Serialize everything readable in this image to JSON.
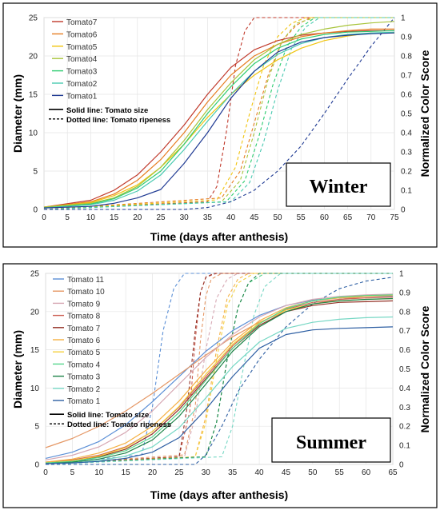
{
  "chart_data": [
    {
      "type": "line",
      "title": "Winter",
      "xlabel": "Time (days after anthesis)",
      "ylabel": "Diameter (mm)",
      "y2label": "Normalized Color Score",
      "xlim": [
        0,
        75
      ],
      "ylim": [
        0,
        25
      ],
      "y2lim": [
        0,
        1
      ],
      "xticks": [
        0,
        5,
        10,
        15,
        20,
        25,
        30,
        35,
        40,
        45,
        50,
        55,
        60,
        65,
        70,
        75
      ],
      "yticks": [
        0,
        5,
        10,
        15,
        20,
        25
      ],
      "y2ticks": [
        0,
        0.1,
        0.2,
        0.3,
        0.4,
        0.5,
        0.6,
        0.7,
        0.8,
        0.9,
        1
      ],
      "legend_position": "top-left",
      "legend_note_solid": "Solid line: Tomato size",
      "legend_note_dotted": "Dotted line: Tomato ripeness",
      "series": [
        {
          "name": "Tomato7",
          "color": "#c0392b",
          "size_x": [
            0,
            10,
            15,
            20,
            25,
            30,
            35,
            40,
            45,
            50,
            55,
            60,
            65,
            70,
            75
          ],
          "size_y": [
            0.3,
            1.2,
            2.5,
            4.5,
            7.5,
            11,
            15,
            18.5,
            20.8,
            22,
            22.7,
            23,
            23.2,
            23.3,
            23.3
          ],
          "ripe_x": [
            0,
            35,
            37,
            39,
            41,
            43,
            45,
            50,
            75
          ],
          "ripe_y": [
            0,
            0.04,
            0.12,
            0.4,
            0.75,
            0.93,
            1,
            1,
            1
          ]
        },
        {
          "name": "Tomato6",
          "color": "#e67e22",
          "size_x": [
            0,
            10,
            15,
            20,
            25,
            30,
            35,
            40,
            45,
            50,
            55,
            60,
            65,
            70,
            75
          ],
          "size_y": [
            0.3,
            1,
            2,
            3.8,
            6.5,
            10,
            14,
            17.5,
            20,
            21.5,
            22.5,
            23,
            23.3,
            23.5,
            23.5
          ],
          "ripe_x": [
            0,
            38,
            42,
            45,
            48,
            51,
            54,
            57,
            75
          ],
          "ripe_y": [
            0,
            0.06,
            0.2,
            0.45,
            0.7,
            0.88,
            0.96,
            1,
            1
          ]
        },
        {
          "name": "Tomato5",
          "color": "#f1c40f",
          "size_x": [
            0,
            10,
            15,
            20,
            25,
            30,
            35,
            40,
            45,
            50,
            55,
            60,
            65,
            70,
            75
          ],
          "size_y": [
            0.3,
            0.9,
            1.8,
            3.2,
            5.5,
            8.5,
            12,
            15,
            17.5,
            19.5,
            21,
            22,
            22.6,
            23,
            23
          ],
          "ripe_x": [
            0,
            37,
            41,
            44,
            47,
            50,
            53,
            56,
            75
          ],
          "ripe_y": [
            0,
            0.05,
            0.22,
            0.5,
            0.75,
            0.9,
            0.97,
            1,
            1
          ]
        },
        {
          "name": "Tomato4",
          "color": "#a8c43a",
          "size_x": [
            0,
            10,
            15,
            20,
            25,
            30,
            35,
            40,
            45,
            50,
            55,
            60,
            65,
            70,
            75
          ],
          "size_y": [
            0.3,
            0.8,
            1.5,
            3,
            5.5,
            9,
            13,
            16.5,
            19.5,
            21.5,
            22.8,
            23.5,
            24,
            24.3,
            24.5
          ],
          "ripe_x": [
            0,
            38,
            42,
            45,
            48,
            51,
            54,
            58,
            75
          ],
          "ripe_y": [
            0,
            0.04,
            0.15,
            0.4,
            0.68,
            0.88,
            0.97,
            1,
            1
          ]
        },
        {
          "name": "Tomato3",
          "color": "#2ecc71",
          "size_x": [
            0,
            10,
            15,
            20,
            25,
            30,
            35,
            40,
            45,
            50,
            55,
            60,
            65,
            70,
            75
          ],
          "size_y": [
            0.2,
            0.7,
            1.4,
            2.8,
            5,
            8.5,
            12.5,
            16,
            19,
            21,
            22.2,
            22.8,
            23.1,
            23.2,
            23.3
          ],
          "ripe_x": [
            0,
            39,
            43,
            46,
            49,
            52,
            55,
            58,
            75
          ],
          "ripe_y": [
            0,
            0.04,
            0.15,
            0.38,
            0.65,
            0.85,
            0.95,
            1,
            1
          ]
        },
        {
          "name": "Tomato2",
          "color": "#48c9b0",
          "size_x": [
            0,
            10,
            15,
            20,
            25,
            30,
            35,
            40,
            45,
            50,
            55,
            60,
            65,
            70,
            75
          ],
          "size_y": [
            0.2,
            0.6,
            1.2,
            2.4,
            4.5,
            7.8,
            11.5,
            15,
            18,
            20.2,
            21.6,
            22.4,
            22.8,
            23,
            23.1
          ],
          "ripe_x": [
            0,
            40,
            44,
            47,
            50,
            53,
            56,
            59,
            75
          ],
          "ripe_y": [
            0,
            0.04,
            0.14,
            0.35,
            0.62,
            0.84,
            0.95,
            1,
            1
          ]
        },
        {
          "name": "Tomato1",
          "color": "#1f3a93",
          "size_x": [
            0,
            10,
            15,
            20,
            25,
            30,
            35,
            40,
            45,
            50,
            55,
            60,
            65,
            70,
            75
          ],
          "size_y": [
            0.2,
            0.4,
            0.8,
            1.5,
            2.6,
            6,
            10,
            14.5,
            18,
            20.5,
            21.8,
            22.4,
            22.7,
            22.9,
            23
          ],
          "ripe_x": [
            0,
            30,
            35,
            40,
            45,
            50,
            55,
            60,
            65,
            70,
            75
          ],
          "ripe_y": [
            0,
            0,
            0.01,
            0.04,
            0.1,
            0.2,
            0.33,
            0.5,
            0.68,
            0.85,
            1
          ]
        }
      ]
    },
    {
      "type": "line",
      "title": "Summer",
      "xlabel": "Time (days after anthesis)",
      "ylabel": "Diameter (mm)",
      "y2label": "Normalized Color Score",
      "xlim": [
        0,
        65
      ],
      "ylim": [
        0,
        25
      ],
      "y2lim": [
        0,
        1
      ],
      "xticks": [
        0,
        5,
        10,
        15,
        20,
        25,
        30,
        35,
        40,
        45,
        50,
        55,
        60,
        65
      ],
      "yticks": [
        0,
        5,
        10,
        15,
        20,
        25
      ],
      "y2ticks": [
        0,
        0.1,
        0.2,
        0.3,
        0.4,
        0.5,
        0.6,
        0.7,
        0.8,
        0.9,
        1
      ],
      "legend_position": "top-left",
      "legend_note_solid": "Solid line: Tomato size",
      "legend_note_dotted": "Dotted line: Tomato ripeness",
      "series": [
        {
          "name": "Tomato 11",
          "color": "#5b8fd6",
          "size_x": [
            0,
            5,
            10,
            15,
            20,
            25,
            30,
            35,
            40,
            45,
            50,
            55,
            60,
            65
          ],
          "size_y": [
            0.8,
            1.6,
            3,
            5.2,
            8.2,
            11.5,
            14.8,
            17.5,
            19.5,
            20.8,
            21.5,
            21.8,
            22,
            22
          ],
          "ripe_x": [
            0,
            18,
            20,
            22,
            24,
            26,
            30,
            65
          ],
          "ripe_y": [
            0,
            0.05,
            0.3,
            0.7,
            0.92,
            1,
            1,
            1
          ]
        },
        {
          "name": "Tomato 10",
          "color": "#e59866",
          "size_x": [
            0,
            5,
            10,
            15,
            20,
            25,
            30,
            35,
            40,
            45,
            50,
            55,
            60,
            65
          ],
          "size_y": [
            2.2,
            3.4,
            5,
            7,
            9.3,
            11.8,
            14.3,
            16.7,
            18.6,
            20,
            21,
            21.6,
            22,
            22.2
          ],
          "ripe_x": [
            0,
            26,
            28,
            29,
            30,
            31,
            33,
            65
          ],
          "ripe_y": [
            0,
            0.05,
            0.3,
            0.65,
            0.88,
            0.97,
            1,
            1
          ]
        },
        {
          "name": "Tomato 9",
          "color": "#d7a9b4",
          "size_x": [
            0,
            5,
            10,
            15,
            20,
            25,
            30,
            35,
            40,
            45,
            50,
            55,
            60,
            65
          ],
          "size_y": [
            0.6,
            1.2,
            2.3,
            4.2,
            7,
            10.5,
            14,
            17,
            19.3,
            20.8,
            21.6,
            22,
            22.2,
            22.3
          ],
          "ripe_x": [
            0,
            26,
            28,
            30,
            32,
            34,
            36,
            65
          ],
          "ripe_y": [
            0,
            0.04,
            0.25,
            0.6,
            0.87,
            0.97,
            1,
            1
          ]
        },
        {
          "name": "Tomato 8",
          "color": "#cd6155",
          "size_x": [
            0,
            5,
            10,
            15,
            20,
            25,
            30,
            35,
            40,
            45,
            50,
            55,
            60,
            65
          ],
          "size_y": [
            0.3,
            0.6,
            1.2,
            2.3,
            4.3,
            7.5,
            11.5,
            15.5,
            18.5,
            20.3,
            21.2,
            21.6,
            21.8,
            21.9
          ],
          "ripe_x": [
            0,
            25,
            27,
            28,
            29,
            30,
            32,
            65
          ],
          "ripe_y": [
            0,
            0.04,
            0.28,
            0.65,
            0.9,
            0.98,
            1,
            1
          ]
        },
        {
          "name": "Tomato 7",
          "color": "#943126",
          "size_x": [
            0,
            5,
            10,
            15,
            20,
            25,
            30,
            35,
            40,
            45,
            50,
            55,
            60,
            65
          ],
          "size_y": [
            0.2,
            0.5,
            1,
            2,
            4,
            7.2,
            11.2,
            15.2,
            18.2,
            20,
            20.8,
            21.2,
            21.3,
            21.4
          ],
          "ripe_x": [
            0,
            25,
            26.5,
            28,
            29,
            30,
            31.5,
            65
          ],
          "ripe_y": [
            0,
            0.04,
            0.3,
            0.7,
            0.9,
            0.98,
            1,
            1
          ]
        },
        {
          "name": "Tomato 6",
          "color": "#f5b041",
          "size_x": [
            0,
            5,
            10,
            15,
            20,
            25,
            30,
            35,
            40,
            45,
            50,
            55,
            60,
            65
          ],
          "size_y": [
            0.3,
            0.7,
            1.5,
            2.8,
            5,
            8.3,
            12.3,
            16,
            18.8,
            20.5,
            21.4,
            21.8,
            22,
            22.1
          ],
          "ripe_x": [
            0,
            28,
            30,
            32,
            34,
            36,
            38,
            65
          ],
          "ripe_y": [
            0,
            0.04,
            0.25,
            0.6,
            0.87,
            0.97,
            1,
            1
          ]
        },
        {
          "name": "Tomato 5",
          "color": "#f4d03f",
          "size_x": [
            0,
            5,
            10,
            15,
            20,
            25,
            30,
            35,
            40,
            45,
            50,
            55,
            60,
            65
          ],
          "size_y": [
            0.2,
            0.5,
            1.1,
            2.2,
            4.3,
            7.6,
            11.8,
            15.7,
            18.5,
            20.2,
            21,
            21.4,
            21.6,
            21.7
          ],
          "ripe_x": [
            0,
            28,
            30,
            32,
            34,
            36,
            39,
            65
          ],
          "ripe_y": [
            0,
            0.04,
            0.22,
            0.55,
            0.83,
            0.95,
            1,
            1
          ]
        },
        {
          "name": "Tomato 4",
          "color": "#58d68d",
          "size_x": [
            0,
            5,
            10,
            15,
            20,
            25,
            30,
            35,
            40,
            45,
            50,
            55,
            60,
            65
          ],
          "size_y": [
            0.2,
            0.4,
            0.9,
            1.8,
            3.6,
            6.8,
            11,
            15.2,
            18.4,
            20.4,
            21.4,
            21.9,
            22.1,
            22.2
          ],
          "ripe_x": [
            0,
            30,
            32,
            34,
            36,
            38,
            41,
            65
          ],
          "ripe_y": [
            0,
            0.04,
            0.22,
            0.55,
            0.82,
            0.95,
            1,
            1
          ]
        },
        {
          "name": "Tomato 3",
          "color": "#1e8449",
          "size_x": [
            0,
            5,
            10,
            15,
            20,
            25,
            30,
            35,
            40,
            45,
            50,
            55,
            60,
            65
          ],
          "size_y": [
            0.1,
            0.3,
            0.7,
            1.5,
            3.2,
            6.3,
            10.5,
            14.8,
            18,
            20,
            21,
            21.4,
            21.6,
            21.7
          ],
          "ripe_x": [
            0,
            30,
            32,
            34,
            36,
            38,
            40,
            65
          ],
          "ripe_y": [
            0,
            0.04,
            0.22,
            0.55,
            0.82,
            0.95,
            1,
            1
          ]
        },
        {
          "name": "Tomato 2",
          "color": "#76d7c4",
          "size_x": [
            0,
            5,
            10,
            15,
            20,
            25,
            30,
            35,
            40,
            45,
            50,
            55,
            60,
            65
          ],
          "size_y": [
            0.1,
            0.2,
            0.5,
            1.1,
            2.3,
            4.8,
            8.7,
            12.8,
            16,
            17.8,
            18.6,
            19,
            19.2,
            19.3
          ],
          "ripe_x": [
            0,
            33,
            35,
            37,
            39,
            41,
            44,
            65
          ],
          "ripe_y": [
            0,
            0.04,
            0.2,
            0.5,
            0.78,
            0.93,
            1,
            1
          ]
        },
        {
          "name": "Tomato 1",
          "color": "#2e5fa3",
          "size_x": [
            0,
            5,
            10,
            15,
            20,
            25,
            30,
            35,
            40,
            45,
            50,
            55,
            60,
            65
          ],
          "size_y": [
            0.1,
            0.2,
            0.4,
            0.8,
            1.6,
            3.5,
            7.2,
            11.5,
            15.2,
            17,
            17.6,
            17.8,
            17.9,
            18
          ],
          "ripe_x": [
            0,
            28,
            30,
            33,
            36,
            40,
            45,
            50,
            55,
            60,
            65
          ],
          "ripe_y": [
            0,
            0,
            0.05,
            0.2,
            0.38,
            0.55,
            0.72,
            0.84,
            0.92,
            0.96,
            0.98
          ]
        }
      ]
    }
  ]
}
